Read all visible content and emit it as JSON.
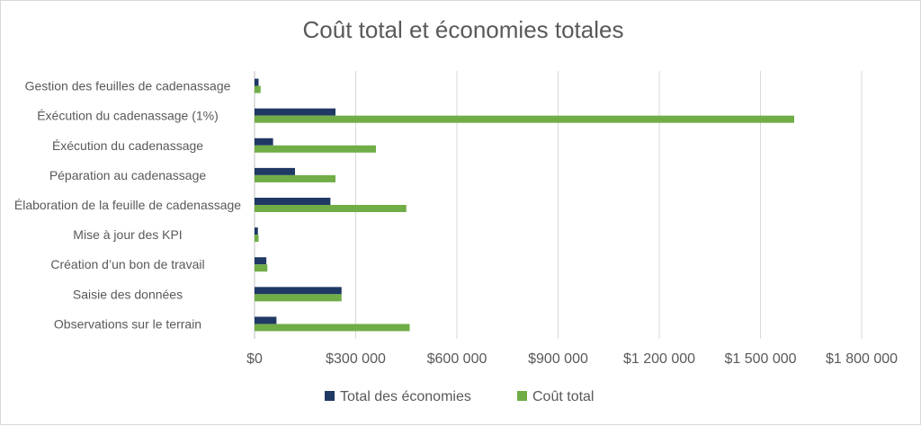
{
  "chart_data": {
    "type": "bar",
    "orientation": "horizontal",
    "title": "Coût total et économies totales",
    "categories": [
      "Gestion des feuilles de cadenassage",
      "Éxécution du cadenassage (1%)",
      "Éxécution du cadenassage",
      "Péparation au cadenassage",
      "Élaboration de la feuille de cadenassage",
      "Mise à jour des KPI",
      "Création d’un bon de travail",
      "Saisie des données",
      "Observations sur le terrain"
    ],
    "series": [
      {
        "name": "Total des économies",
        "color": "#203864",
        "values": [
          12000,
          240000,
          55000,
          120000,
          225000,
          10000,
          35000,
          258000,
          65000
        ]
      },
      {
        "name": "Coût total",
        "color": "#70ad47",
        "values": [
          18000,
          1600000,
          360000,
          240000,
          450000,
          12000,
          38000,
          258000,
          460000
        ]
      }
    ],
    "xlim": [
      0,
      1800000
    ],
    "xticks": [
      0,
      300000,
      600000,
      900000,
      1200000,
      1500000,
      1800000
    ],
    "xtick_labels": [
      "$0",
      "$300 000",
      "$600 000",
      "$900 000",
      "$1 200 000",
      "$1 500 000",
      "$1 800 000"
    ],
    "grid": true,
    "legend_position": "bottom"
  }
}
